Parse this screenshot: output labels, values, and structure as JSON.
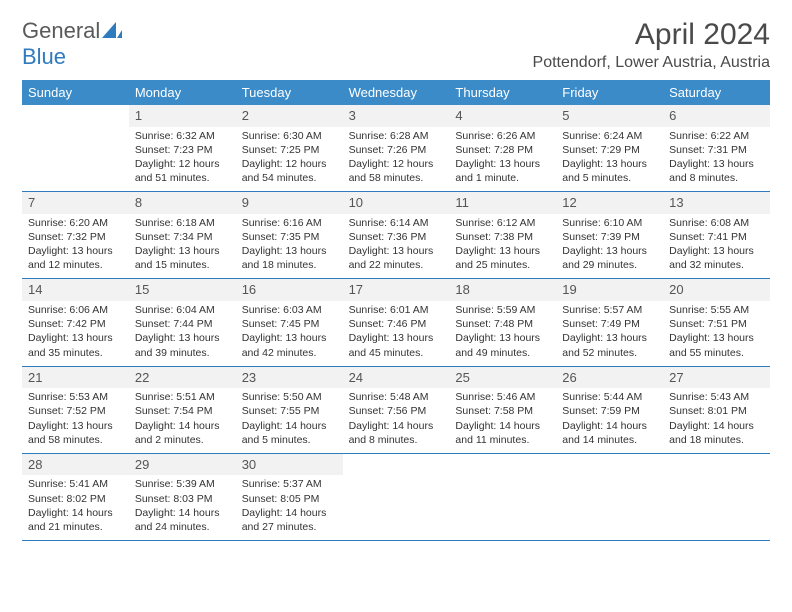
{
  "branding": {
    "word1": "General",
    "word2": "Blue",
    "word1_color": "#5a5a5a",
    "word2_color": "#2f7bbf",
    "icon_color": "#2f7bbf"
  },
  "title": "April 2024",
  "location": "Pottendorf, Lower Austria, Austria",
  "colors": {
    "header_bg": "#3b8bc9",
    "header_text": "#ffffff",
    "divider": "#2f7bbf",
    "daynum_bg": "#f2f2f2",
    "text": "#333333"
  },
  "day_labels": [
    "Sunday",
    "Monday",
    "Tuesday",
    "Wednesday",
    "Thursday",
    "Friday",
    "Saturday"
  ],
  "weeks": [
    [
      {
        "empty": true
      },
      {
        "day": "1",
        "sunrise": "Sunrise: 6:32 AM",
        "sunset": "Sunset: 7:23 PM",
        "daylight": "Daylight: 12 hours and 51 minutes."
      },
      {
        "day": "2",
        "sunrise": "Sunrise: 6:30 AM",
        "sunset": "Sunset: 7:25 PM",
        "daylight": "Daylight: 12 hours and 54 minutes."
      },
      {
        "day": "3",
        "sunrise": "Sunrise: 6:28 AM",
        "sunset": "Sunset: 7:26 PM",
        "daylight": "Daylight: 12 hours and 58 minutes."
      },
      {
        "day": "4",
        "sunrise": "Sunrise: 6:26 AM",
        "sunset": "Sunset: 7:28 PM",
        "daylight": "Daylight: 13 hours and 1 minute."
      },
      {
        "day": "5",
        "sunrise": "Sunrise: 6:24 AM",
        "sunset": "Sunset: 7:29 PM",
        "daylight": "Daylight: 13 hours and 5 minutes."
      },
      {
        "day": "6",
        "sunrise": "Sunrise: 6:22 AM",
        "sunset": "Sunset: 7:31 PM",
        "daylight": "Daylight: 13 hours and 8 minutes."
      }
    ],
    [
      {
        "day": "7",
        "sunrise": "Sunrise: 6:20 AM",
        "sunset": "Sunset: 7:32 PM",
        "daylight": "Daylight: 13 hours and 12 minutes."
      },
      {
        "day": "8",
        "sunrise": "Sunrise: 6:18 AM",
        "sunset": "Sunset: 7:34 PM",
        "daylight": "Daylight: 13 hours and 15 minutes."
      },
      {
        "day": "9",
        "sunrise": "Sunrise: 6:16 AM",
        "sunset": "Sunset: 7:35 PM",
        "daylight": "Daylight: 13 hours and 18 minutes."
      },
      {
        "day": "10",
        "sunrise": "Sunrise: 6:14 AM",
        "sunset": "Sunset: 7:36 PM",
        "daylight": "Daylight: 13 hours and 22 minutes."
      },
      {
        "day": "11",
        "sunrise": "Sunrise: 6:12 AM",
        "sunset": "Sunset: 7:38 PM",
        "daylight": "Daylight: 13 hours and 25 minutes."
      },
      {
        "day": "12",
        "sunrise": "Sunrise: 6:10 AM",
        "sunset": "Sunset: 7:39 PM",
        "daylight": "Daylight: 13 hours and 29 minutes."
      },
      {
        "day": "13",
        "sunrise": "Sunrise: 6:08 AM",
        "sunset": "Sunset: 7:41 PM",
        "daylight": "Daylight: 13 hours and 32 minutes."
      }
    ],
    [
      {
        "day": "14",
        "sunrise": "Sunrise: 6:06 AM",
        "sunset": "Sunset: 7:42 PM",
        "daylight": "Daylight: 13 hours and 35 minutes."
      },
      {
        "day": "15",
        "sunrise": "Sunrise: 6:04 AM",
        "sunset": "Sunset: 7:44 PM",
        "daylight": "Daylight: 13 hours and 39 minutes."
      },
      {
        "day": "16",
        "sunrise": "Sunrise: 6:03 AM",
        "sunset": "Sunset: 7:45 PM",
        "daylight": "Daylight: 13 hours and 42 minutes."
      },
      {
        "day": "17",
        "sunrise": "Sunrise: 6:01 AM",
        "sunset": "Sunset: 7:46 PM",
        "daylight": "Daylight: 13 hours and 45 minutes."
      },
      {
        "day": "18",
        "sunrise": "Sunrise: 5:59 AM",
        "sunset": "Sunset: 7:48 PM",
        "daylight": "Daylight: 13 hours and 49 minutes."
      },
      {
        "day": "19",
        "sunrise": "Sunrise: 5:57 AM",
        "sunset": "Sunset: 7:49 PM",
        "daylight": "Daylight: 13 hours and 52 minutes."
      },
      {
        "day": "20",
        "sunrise": "Sunrise: 5:55 AM",
        "sunset": "Sunset: 7:51 PM",
        "daylight": "Daylight: 13 hours and 55 minutes."
      }
    ],
    [
      {
        "day": "21",
        "sunrise": "Sunrise: 5:53 AM",
        "sunset": "Sunset: 7:52 PM",
        "daylight": "Daylight: 13 hours and 58 minutes."
      },
      {
        "day": "22",
        "sunrise": "Sunrise: 5:51 AM",
        "sunset": "Sunset: 7:54 PM",
        "daylight": "Daylight: 14 hours and 2 minutes."
      },
      {
        "day": "23",
        "sunrise": "Sunrise: 5:50 AM",
        "sunset": "Sunset: 7:55 PM",
        "daylight": "Daylight: 14 hours and 5 minutes."
      },
      {
        "day": "24",
        "sunrise": "Sunrise: 5:48 AM",
        "sunset": "Sunset: 7:56 PM",
        "daylight": "Daylight: 14 hours and 8 minutes."
      },
      {
        "day": "25",
        "sunrise": "Sunrise: 5:46 AM",
        "sunset": "Sunset: 7:58 PM",
        "daylight": "Daylight: 14 hours and 11 minutes."
      },
      {
        "day": "26",
        "sunrise": "Sunrise: 5:44 AM",
        "sunset": "Sunset: 7:59 PM",
        "daylight": "Daylight: 14 hours and 14 minutes."
      },
      {
        "day": "27",
        "sunrise": "Sunrise: 5:43 AM",
        "sunset": "Sunset: 8:01 PM",
        "daylight": "Daylight: 14 hours and 18 minutes."
      }
    ],
    [
      {
        "day": "28",
        "sunrise": "Sunrise: 5:41 AM",
        "sunset": "Sunset: 8:02 PM",
        "daylight": "Daylight: 14 hours and 21 minutes."
      },
      {
        "day": "29",
        "sunrise": "Sunrise: 5:39 AM",
        "sunset": "Sunset: 8:03 PM",
        "daylight": "Daylight: 14 hours and 24 minutes."
      },
      {
        "day": "30",
        "sunrise": "Sunrise: 5:37 AM",
        "sunset": "Sunset: 8:05 PM",
        "daylight": "Daylight: 14 hours and 27 minutes."
      },
      {
        "empty": true
      },
      {
        "empty": true
      },
      {
        "empty": true
      },
      {
        "empty": true
      }
    ]
  ]
}
